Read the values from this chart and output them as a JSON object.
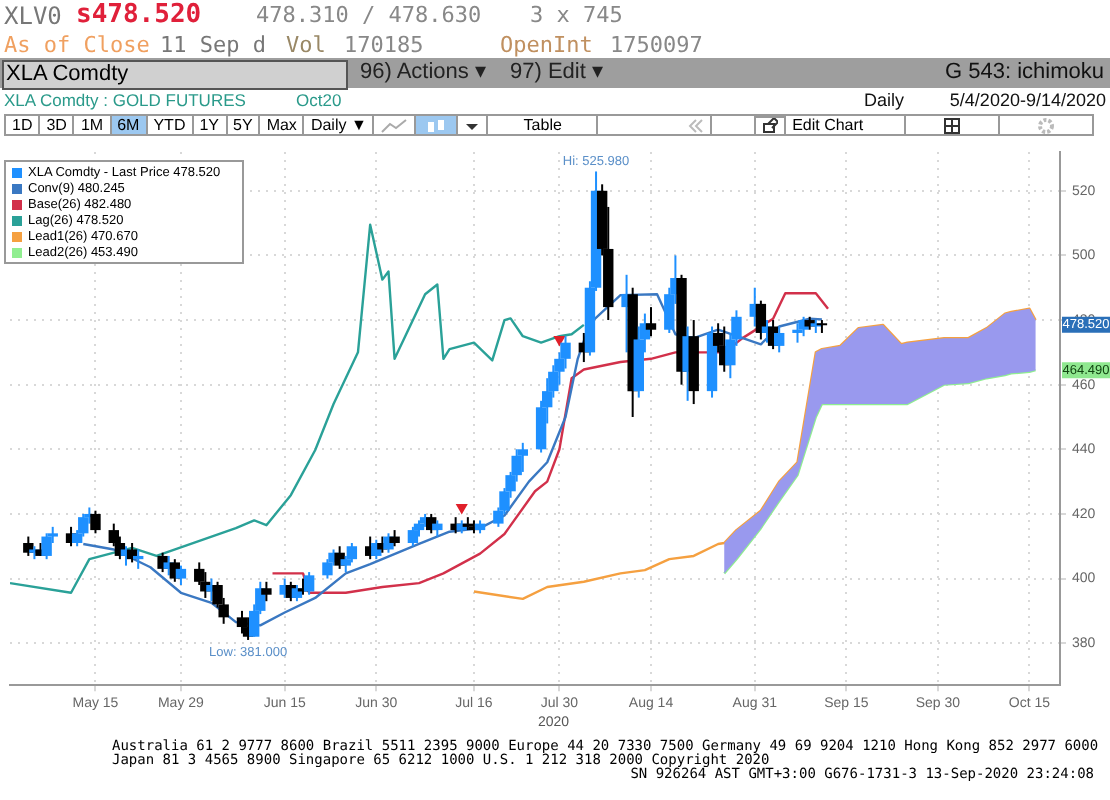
{
  "chart_data": {
    "type": "candlestick",
    "title": "XLA Comdty : GOLD FUTURES",
    "subtitle": "Oct20",
    "xlim": [
      "2020-05-01",
      "2020-10-20"
    ],
    "xticks": [
      {
        "value": "2020-05-15",
        "label": "May 15"
      },
      {
        "value": "2020-05-29",
        "label": "May 29"
      },
      {
        "value": "2020-06-15",
        "label": "Jun 15"
      },
      {
        "value": "2020-06-30",
        "label": "Jun 30"
      },
      {
        "value": "2020-07-16",
        "label": "Jul 16"
      },
      {
        "value": "2020-07-30",
        "label": "Jul 30"
      },
      {
        "value": "2020-08-14",
        "label": "Aug 14"
      },
      {
        "value": "2020-08-31",
        "label": "Aug 31"
      },
      {
        "value": "2020-09-15",
        "label": "Sep 15"
      },
      {
        "value": "2020-09-30",
        "label": "Sep 30"
      },
      {
        "value": "2020-10-15",
        "label": "Oct 15"
      }
    ],
    "ylim": [
      367,
      532
    ],
    "yticks": [
      380,
      400,
      420,
      440,
      460,
      480,
      500,
      520
    ],
    "grid": true,
    "legend": "top left",
    "series": [
      {
        "type": "line",
        "name": "Conv(9) 480.245",
        "color": "#3a78c2",
        "x": [
          "2020-05-13",
          "2020-05-18",
          "2020-05-24",
          "2020-05-29",
          "2020-06-03",
          "2020-06-07",
          "2020-06-11",
          "2020-06-15",
          "2020-06-20",
          "2020-06-25",
          "2020-06-29",
          "2020-07-07",
          "2020-07-12",
          "2020-07-17",
          "2020-07-21",
          "2020-07-25",
          "2020-07-28",
          "2020-07-31",
          "2020-08-02",
          "2020-08-04",
          "2020-08-09",
          "2020-08-15",
          "2020-08-18",
          "2020-08-21",
          "2020-08-25",
          "2020-09-01",
          "2020-09-04",
          "2020-09-09",
          "2020-09-11"
        ],
        "values": [
          410.7,
          409,
          403.5,
          395.6,
          392.5,
          386.5,
          385.5,
          389.5,
          394,
          401.6,
          404.5,
          410.7,
          414.5,
          415.6,
          419.5,
          430,
          436,
          450,
          468,
          479,
          487.7,
          488,
          475.6,
          474.4,
          477,
          472.5,
          478,
          480.4,
          480.2
        ]
      },
      {
        "type": "line",
        "name": "Base(26) 482.480",
        "color": "#d2304a",
        "x": [
          "2020-06-13",
          "2020-06-18",
          "2020-06-19",
          "2020-06-25",
          "2020-07-01",
          "2020-07-07",
          "2020-07-11",
          "2020-07-17",
          "2020-07-21",
          "2020-07-26",
          "2020-07-28",
          "2020-07-30",
          "2020-08-01",
          "2020-08-03",
          "2020-08-09",
          "2020-08-14",
          "2020-08-18",
          "2020-08-26",
          "2020-08-29",
          "2020-09-03",
          "2020-09-05",
          "2020-09-10",
          "2020-09-12"
        ],
        "values": [
          401.6,
          401.6,
          395.6,
          395.6,
          397.4,
          398.6,
          401.6,
          407.7,
          413.8,
          427,
          430,
          440,
          462,
          464.7,
          467,
          468,
          470,
          470,
          474.4,
          480.4,
          488.3,
          488.3,
          483.5
        ]
      },
      {
        "type": "line",
        "name": "Lag(26) 478.520",
        "color": "#2aa198",
        "x": [
          "2020-05-01",
          "2020-05-11",
          "2020-05-14",
          "2020-05-21",
          "2020-05-25",
          "2020-06-07",
          "2020-06-10",
          "2020-06-12",
          "2020-06-16",
          "2020-06-20",
          "2020-06-23",
          "2020-06-27",
          "2020-06-29",
          "2020-07-01",
          "2020-07-02",
          "2020-07-03",
          "2020-07-08",
          "2020-07-10",
          "2020-07-11",
          "2020-07-12",
          "2020-07-16",
          "2020-07-19",
          "2020-07-21",
          "2020-07-22",
          "2020-07-24",
          "2020-07-27",
          "2020-07-30",
          "2020-08-01",
          "2020-08-03"
        ],
        "values": [
          398.6,
          395.6,
          406,
          409.5,
          407,
          415.6,
          418,
          416.5,
          425.8,
          439.8,
          454,
          470,
          509.5,
          492.5,
          495,
          468,
          488,
          491,
          468,
          471,
          473,
          467.5,
          480,
          480.5,
          475,
          473,
          475,
          475.6,
          478.5
        ]
      },
      {
        "type": "line",
        "name": "Lead1(26) 470.670",
        "color": "#f5a040",
        "x": [
          "2020-07-16",
          "2020-07-24",
          "2020-07-28",
          "2020-08-03",
          "2020-08-09",
          "2020-08-13",
          "2020-08-17",
          "2020-08-21",
          "2020-08-25",
          "2020-08-26",
          "2020-08-28",
          "2020-09-01",
          "2020-09-04",
          "2020-09-07",
          "2020-09-10",
          "2020-09-11",
          "2020-09-14",
          "2020-09-17",
          "2020-09-21",
          "2020-09-24",
          "2020-09-25",
          "2020-10-01",
          "2020-10-05",
          "2020-10-08",
          "2020-10-11",
          "2020-10-12",
          "2020-10-15",
          "2020-10-16"
        ],
        "values": [
          396,
          393.7,
          397.4,
          399,
          401.6,
          402.6,
          406,
          407,
          410.7,
          411,
          415,
          421,
          430,
          436,
          470,
          471,
          472,
          477.5,
          478.5,
          472.5,
          473,
          474.4,
          474.4,
          477.5,
          482,
          482.5,
          483.5,
          480
        ]
      },
      {
        "type": "line",
        "name": "Lead2(26) 453.490",
        "color": "#90ee90",
        "x": [
          "2020-08-26",
          "2020-08-28",
          "2020-09-01",
          "2020-09-04",
          "2020-09-07",
          "2020-09-10",
          "2020-09-11",
          "2020-09-14",
          "2020-09-17",
          "2020-09-21",
          "2020-09-24",
          "2020-09-25",
          "2020-10-01",
          "2020-10-05",
          "2020-10-08",
          "2020-10-11",
          "2020-10-12",
          "2020-10-15",
          "2020-10-16"
        ],
        "values": [
          401.6,
          406,
          415.6,
          424,
          432,
          450,
          454,
          454,
          454,
          454,
          454,
          454,
          460,
          460.5,
          462,
          463,
          463.5,
          464,
          464.5
        ],
        "lower": [
          401.6,
          406,
          415.6,
          424,
          432,
          450,
          454,
          454,
          454,
          454,
          454,
          454,
          460,
          460.5,
          462,
          463,
          463.5,
          464,
          464.5
        ],
        "upper": [
          411,
          415,
          421,
          430,
          436,
          470,
          471,
          472,
          477.5,
          478.5,
          472.5,
          473,
          474.4,
          474.4,
          477.5,
          482,
          482.5,
          483.5,
          480
        ]
      },
      {
        "name": "XLA Comdty - Last Price 478.520",
        "color": "#1e90ff",
        "x": [
          "2020-05-04",
          "2020-05-05",
          "2020-05-06",
          "2020-05-07",
          "2020-05-08",
          "2020-05-11",
          "2020-05-12",
          "2020-05-13",
          "2020-05-14",
          "2020-05-15",
          "2020-05-18",
          "2020-05-19",
          "2020-05-20",
          "2020-05-21",
          "2020-05-22",
          "2020-05-26",
          "2020-05-27",
          "2020-05-28",
          "2020-05-29",
          "2020-06-01",
          "2020-06-02",
          "2020-06-03",
          "2020-06-04",
          "2020-06-05",
          "2020-06-08",
          "2020-06-09",
          "2020-06-10",
          "2020-06-11",
          "2020-06-12",
          "2020-06-15",
          "2020-06-16",
          "2020-06-17",
          "2020-06-18",
          "2020-06-19",
          "2020-06-22",
          "2020-06-23",
          "2020-06-24",
          "2020-06-25",
          "2020-06-26",
          "2020-06-29",
          "2020-06-30",
          "2020-07-01",
          "2020-07-02",
          "2020-07-03",
          "2020-07-06",
          "2020-07-07",
          "2020-07-08",
          "2020-07-09",
          "2020-07-10",
          "2020-07-13",
          "2020-07-14",
          "2020-07-15",
          "2020-07-16",
          "2020-07-17",
          "2020-07-20",
          "2020-07-21",
          "2020-07-22",
          "2020-07-23",
          "2020-07-24",
          "2020-07-27",
          "2020-07-28",
          "2020-07-29",
          "2020-07-30",
          "2020-07-31",
          "2020-08-03",
          "2020-08-04",
          "2020-08-05",
          "2020-08-06",
          "2020-08-07",
          "2020-08-10",
          "2020-08-11",
          "2020-08-12",
          "2020-08-13",
          "2020-08-14",
          "2020-08-17",
          "2020-08-18",
          "2020-08-19",
          "2020-08-20",
          "2020-08-21",
          "2020-08-24",
          "2020-08-25",
          "2020-08-26",
          "2020-08-27",
          "2020-08-28",
          "2020-08-31",
          "2020-09-01",
          "2020-09-02",
          "2020-09-03",
          "2020-09-04",
          "2020-09-07",
          "2020-09-08",
          "2020-09-09",
          "2020-09-10",
          "2020-09-11"
        ],
        "ohlc": [
          [
            411,
            413,
            407,
            408
          ],
          [
            408,
            410,
            406,
            409
          ],
          [
            409,
            411,
            407,
            407
          ],
          [
            407,
            414,
            406,
            413
          ],
          [
            413,
            416,
            411,
            414
          ],
          [
            414,
            416,
            410,
            411
          ],
          [
            411,
            415,
            410,
            414
          ],
          [
            414,
            420,
            413,
            419
          ],
          [
            419,
            422,
            417,
            420
          ],
          [
            420,
            421,
            414,
            415
          ],
          [
            415,
            417,
            410,
            411
          ],
          [
            411,
            413,
            406,
            407
          ],
          [
            407,
            410,
            404,
            409
          ],
          [
            409,
            411,
            405,
            406
          ],
          [
            406,
            409,
            403,
            407
          ],
          [
            407,
            408,
            402,
            403
          ],
          [
            403,
            407,
            401,
            405
          ],
          [
            405,
            406,
            399,
            400
          ],
          [
            400,
            404,
            398,
            403
          ],
          [
            403,
            405,
            398,
            399
          ],
          [
            399,
            402,
            394,
            396
          ],
          [
            396,
            400,
            393,
            398
          ],
          [
            398,
            399,
            391,
            392
          ],
          [
            392,
            394,
            386,
            388
          ],
          [
            388,
            390,
            383,
            385
          ],
          [
            385,
            388,
            381,
            382
          ],
          [
            382,
            392,
            382,
            390
          ],
          [
            390,
            399,
            389,
            397
          ],
          [
            397,
            399,
            393,
            395
          ],
          [
            395,
            400,
            394,
            398
          ],
          [
            398,
            399,
            393,
            394
          ],
          [
            394,
            398,
            393,
            397
          ],
          [
            397,
            400,
            395,
            396
          ],
          [
            396,
            402,
            395,
            401
          ],
          [
            401,
            406,
            400,
            405
          ],
          [
            405,
            409,
            404,
            408
          ],
          [
            408,
            410,
            403,
            404
          ],
          [
            404,
            407,
            402,
            406
          ],
          [
            406,
            411,
            405,
            410
          ],
          [
            410,
            413,
            406,
            407
          ],
          [
            407,
            412,
            406,
            411
          ],
          [
            411,
            413,
            408,
            409
          ],
          [
            409,
            414,
            408,
            413
          ],
          [
            413,
            415,
            410,
            411
          ],
          [
            411,
            416,
            410,
            415
          ],
          [
            415,
            418,
            413,
            417
          ],
          [
            417,
            420,
            416,
            419
          ],
          [
            419,
            420,
            414,
            415
          ],
          [
            415,
            418,
            413,
            417
          ],
          [
            417,
            419,
            414,
            415
          ],
          [
            415,
            418,
            414,
            417
          ],
          [
            417,
            419,
            415,
            416
          ],
          [
            416,
            418,
            414,
            415
          ],
          [
            415,
            418,
            414,
            417
          ],
          [
            417,
            422,
            416,
            421
          ],
          [
            421,
            428,
            420,
            427
          ],
          [
            427,
            433,
            425,
            432
          ],
          [
            432,
            440,
            430,
            438
          ],
          [
            438,
            442,
            433,
            440
          ],
          [
            440,
            455,
            439,
            453
          ],
          [
            453,
            462,
            448,
            458
          ],
          [
            458,
            466,
            456,
            464
          ],
          [
            464,
            470,
            460,
            468
          ],
          [
            468,
            475,
            465,
            473
          ],
          [
            473,
            476,
            467,
            470
          ],
          [
            470,
            492,
            469,
            490
          ],
          [
            490,
            525.98,
            489,
            520
          ],
          [
            520,
            522,
            500,
            502
          ],
          [
            502,
            515,
            480,
            484
          ],
          [
            484,
            494,
            470,
            488
          ],
          [
            488,
            490,
            450,
            458
          ],
          [
            458,
            478,
            456,
            474
          ],
          [
            474,
            482,
            470,
            479
          ],
          [
            479,
            484,
            475,
            477
          ],
          [
            477,
            490,
            476,
            488
          ],
          [
            488,
            500,
            485,
            493
          ],
          [
            493,
            494,
            460,
            464
          ],
          [
            464,
            478,
            455,
            475
          ],
          [
            475,
            480,
            454,
            458
          ],
          [
            458,
            478,
            456,
            476
          ],
          [
            476,
            479,
            470,
            472
          ],
          [
            472,
            478,
            464,
            466
          ],
          [
            466,
            476,
            462,
            474
          ],
          [
            474,
            483,
            472,
            481
          ],
          [
            481,
            490,
            478,
            485
          ],
          [
            485,
            486,
            474,
            476
          ],
          [
            476,
            480,
            473,
            478
          ],
          [
            478,
            480,
            471,
            472
          ],
          [
            472,
            478,
            470,
            476
          ],
          [
            476,
            479,
            473,
            477
          ],
          [
            477,
            481,
            475,
            480
          ],
          [
            480,
            481,
            477,
            478
          ],
          [
            478,
            480,
            476,
            479
          ],
          [
            479,
            480,
            476,
            478.52
          ]
        ],
        "colors": [
          "#000000",
          "#1e90ff",
          "#000000",
          "#1e90ff",
          "#1e90ff",
          "#000000",
          "#1e90ff",
          "#1e90ff",
          "#1e90ff",
          "#000000",
          "#000000",
          "#000000",
          "#1e90ff",
          "#000000",
          "#1e90ff",
          "#000000",
          "#1e90ff",
          "#000000",
          "#1e90ff",
          "#000000",
          "#000000",
          "#1e90ff",
          "#000000",
          "#000000",
          "#000000",
          "#000000",
          "#1e90ff",
          "#1e90ff",
          "#000000",
          "#1e90ff",
          "#000000",
          "#1e90ff",
          "#000000",
          "#1e90ff",
          "#1e90ff",
          "#1e90ff",
          "#000000",
          "#1e90ff",
          "#1e90ff",
          "#000000",
          "#1e90ff",
          "#000000",
          "#1e90ff",
          "#000000",
          "#1e90ff",
          "#1e90ff",
          "#1e90ff",
          "#000000",
          "#1e90ff",
          "#000000",
          "#1e90ff",
          "#000000",
          "#000000",
          "#1e90ff",
          "#1e90ff",
          "#1e90ff",
          "#1e90ff",
          "#1e90ff",
          "#1e90ff",
          "#1e90ff",
          "#1e90ff",
          "#1e90ff",
          "#1e90ff",
          "#1e90ff",
          "#000000",
          "#1e90ff",
          "#1e90ff",
          "#000000",
          "#000000",
          "#1e90ff",
          "#000000",
          "#1e90ff",
          "#1e90ff",
          "#000000",
          "#1e90ff",
          "#1e90ff",
          "#000000",
          "#1e90ff",
          "#000000",
          "#1e90ff",
          "#000000",
          "#000000",
          "#1e90ff",
          "#1e90ff",
          "#1e90ff",
          "#000000",
          "#1e90ff",
          "#000000",
          "#1e90ff",
          "#1e90ff",
          "#1e90ff",
          "#000000",
          "#1e90ff",
          "#000000"
        ]
      },
      {
        "type": "scatter",
        "color": "#e0202a",
        "marker": "triangle",
        "x": [
          "2020-07-14",
          "2020-07-30"
        ],
        "values": [
          422,
          474
        ]
      }
    ],
    "annotations": [
      "XLV0",
      "s478.520",
      "478.310 / 478.630",
      "3 x 745",
      "As of Close",
      "11 Sep d",
      "Vol",
      "170185",
      "OpenInt",
      "1750097",
      "XLA Comdty",
      "96) Actions ▾",
      "97) Edit ▾",
      "G 543: ichimoku",
      "Daily",
      "5/4/2020-9/14/2020",
      "1D",
      "3D",
      "1M",
      "6M",
      "YTD",
      "1Y",
      "5Y",
      "Max",
      "Daily ▼",
      "Table",
      "Edit Chart",
      "Australia 61 2 9777 8600 Brazil 5511 2395 9000 Europe 44 20 7330 7500 Germany 49 69 9204 1210 Hong Kong 852 2977 6000",
      "Japan 81 3 4565 8900 Singapore 65 6212 1000 U.S. 1 212 318 2000 Copyright 2020",
      "SN 926264 AST GMT+3:00 G676-1731-3 13-Sep-2020 23:24:08",
      "2020",
      {
        "text": "Hi: 525.980",
        "x": "2020-08-05",
        "y": 525.98
      },
      {
        "text": "Low: 381.000",
        "x": "2020-06-09",
        "y": 381
      },
      {
        "text": "478.520",
        "y": 478.52
      },
      {
        "text": "464.490",
        "y": 464.49
      }
    ]
  }
}
